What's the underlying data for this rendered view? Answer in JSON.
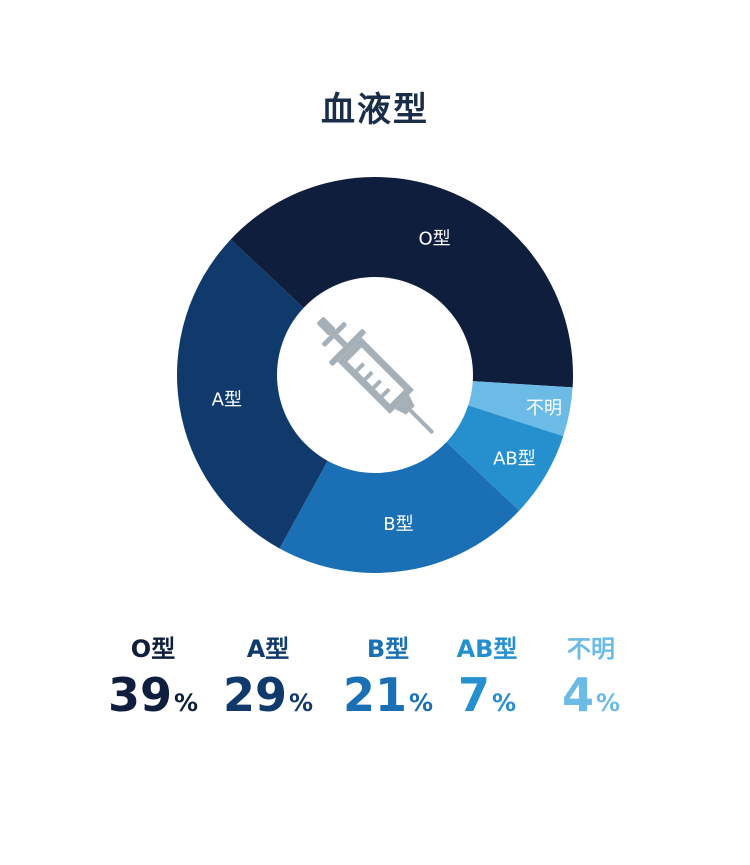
{
  "title": "血液型",
  "chart_data": {
    "type": "pie",
    "title": "血液型",
    "unit": "%",
    "categories": [
      "O型",
      "A型",
      "B型",
      "AB型",
      "不明"
    ],
    "values": [
      39,
      29,
      21,
      7,
      4
    ],
    "colors": [
      "#0f1e3c",
      "#103a6b",
      "#1a6fb5",
      "#2690cf",
      "#6cbbe6"
    ],
    "center_icon": "syringe-icon",
    "legend_placement": "bottom"
  }
}
